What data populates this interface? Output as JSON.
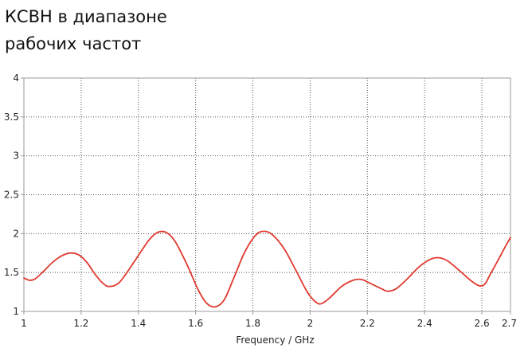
{
  "heading": {
    "line1": "КСВН в диапазоне",
    "line2": "рабочих частот"
  },
  "chart_data": {
    "type": "line",
    "title": "КСВН в диапазоне рабочих частот",
    "xlabel": "Frequency / GHz",
    "ylabel": "",
    "xlim": [
      1,
      2.7
    ],
    "ylim": [
      1,
      4
    ],
    "xticks": [
      "1",
      "1.2",
      "1.4",
      "1.6",
      "1.8",
      "2",
      "2.2",
      "2.4",
      "2.6",
      "2.7"
    ],
    "yticks": [
      "1",
      "1.5",
      "2",
      "2.5",
      "3",
      "3.5",
      "4"
    ],
    "grid": true,
    "colors": {
      "series": "#e03a2f",
      "grid": "#555555",
      "frame": "#9a9a9a"
    },
    "series": [
      {
        "name": "",
        "points": [
          [
            1.0,
            1.43
          ],
          [
            1.02,
            1.4
          ],
          [
            1.04,
            1.42
          ],
          [
            1.07,
            1.52
          ],
          [
            1.1,
            1.63
          ],
          [
            1.13,
            1.71
          ],
          [
            1.16,
            1.75
          ],
          [
            1.19,
            1.73
          ],
          [
            1.22,
            1.63
          ],
          [
            1.25,
            1.47
          ],
          [
            1.28,
            1.35
          ],
          [
            1.3,
            1.32
          ],
          [
            1.33,
            1.36
          ],
          [
            1.36,
            1.5
          ],
          [
            1.4,
            1.72
          ],
          [
            1.44,
            1.93
          ],
          [
            1.47,
            2.02
          ],
          [
            1.5,
            2.01
          ],
          [
            1.53,
            1.89
          ],
          [
            1.57,
            1.6
          ],
          [
            1.61,
            1.27
          ],
          [
            1.64,
            1.1
          ],
          [
            1.67,
            1.06
          ],
          [
            1.7,
            1.15
          ],
          [
            1.73,
            1.4
          ],
          [
            1.77,
            1.75
          ],
          [
            1.81,
            1.98
          ],
          [
            1.84,
            2.03
          ],
          [
            1.87,
            1.98
          ],
          [
            1.91,
            1.8
          ],
          [
            1.95,
            1.53
          ],
          [
            1.99,
            1.25
          ],
          [
            2.02,
            1.12
          ],
          [
            2.04,
            1.1
          ],
          [
            2.07,
            1.18
          ],
          [
            2.11,
            1.32
          ],
          [
            2.15,
            1.4
          ],
          [
            2.18,
            1.41
          ],
          [
            2.21,
            1.36
          ],
          [
            2.25,
            1.29
          ],
          [
            2.27,
            1.26
          ],
          [
            2.3,
            1.29
          ],
          [
            2.34,
            1.42
          ],
          [
            2.38,
            1.57
          ],
          [
            2.42,
            1.67
          ],
          [
            2.45,
            1.69
          ],
          [
            2.48,
            1.65
          ],
          [
            2.52,
            1.53
          ],
          [
            2.56,
            1.4
          ],
          [
            2.59,
            1.33
          ],
          [
            2.61,
            1.35
          ],
          [
            2.63,
            1.48
          ],
          [
            2.66,
            1.68
          ],
          [
            2.68,
            1.82
          ],
          [
            2.7,
            1.95
          ]
        ]
      }
    ]
  }
}
